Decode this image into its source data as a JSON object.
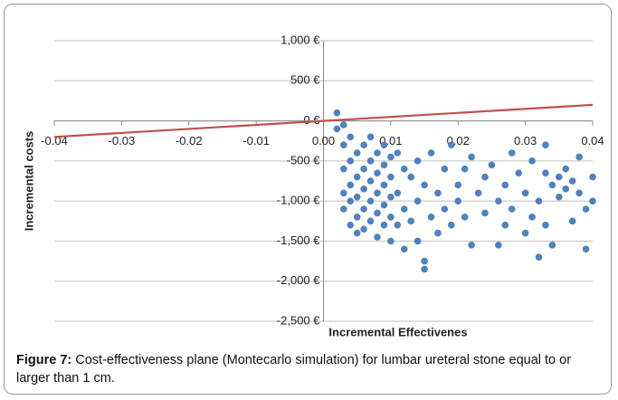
{
  "chart_data": {
    "type": "scatter",
    "x_label": "Incremental Effectivenes",
    "y_label": "Incremental costs",
    "caption_label": "Figure 7:",
    "caption": "Cost-effectiveness plane (Montecarlo simulation) for lumbar ureteral stone equal to or larger than 1 cm.",
    "color": "#4f81bd",
    "grid": true,
    "xlim": [
      -0.04,
      0.04
    ],
    "ylim": [
      -2500,
      1000
    ],
    "xticks": [
      -0.04,
      -0.03,
      -0.02,
      -0.01,
      {
        "value": 0,
        "label": "0.00"
      },
      0.01,
      0.02,
      0.03,
      0.04
    ],
    "yticks": [
      {
        "value": 1000,
        "label": "1,000 €"
      },
      {
        "value": 500,
        "label": "500 €"
      },
      {
        "value": 0,
        "label": "0 €"
      },
      {
        "value": -500,
        "label": "-500 €"
      },
      {
        "value": -1000,
        "label": "-1,000 €"
      },
      {
        "value": -1500,
        "label": "-1,500 €"
      },
      {
        "value": -2000,
        "label": "-2,000 €"
      },
      {
        "value": -2500,
        "label": "-2,500 €"
      }
    ],
    "x": [
      0.002,
      0.002,
      0.003,
      0.003,
      0.003,
      0.003,
      0.003,
      0.004,
      0.004,
      0.004,
      0.004,
      0.004,
      0.005,
      0.005,
      0.005,
      0.005,
      0.005,
      0.006,
      0.006,
      0.006,
      0.006,
      0.006,
      0.007,
      0.007,
      0.007,
      0.007,
      0.007,
      0.008,
      0.008,
      0.008,
      0.008,
      0.008,
      0.009,
      0.009,
      0.009,
      0.009,
      0.009,
      0.01,
      0.01,
      0.01,
      0.01,
      0.01,
      0.011,
      0.011,
      0.011,
      0.012,
      0.012,
      0.012,
      0.013,
      0.013,
      0.014,
      0.014,
      0.014,
      0.015,
      0.015,
      0.015,
      0.016,
      0.016,
      0.017,
      0.017,
      0.018,
      0.018,
      0.019,
      0.019,
      0.02,
      0.02,
      0.021,
      0.021,
      0.022,
      0.022,
      0.023,
      0.024,
      0.024,
      0.025,
      0.026,
      0.026,
      0.027,
      0.027,
      0.028,
      0.028,
      0.029,
      0.03,
      0.03,
      0.031,
      0.031,
      0.032,
      0.032,
      0.033,
      0.033,
      0.033,
      0.034,
      0.034,
      0.035,
      0.035,
      0.036,
      0.036,
      0.037,
      0.037,
      0.038,
      0.038,
      0.039,
      0.039,
      0.04,
      0.04
    ],
    "values": [
      100,
      -100,
      -50,
      -300,
      -600,
      -900,
      -1100,
      -200,
      -500,
      -800,
      -1000,
      -1300,
      -400,
      -700,
      -950,
      -1200,
      -1400,
      -300,
      -600,
      -850,
      -1100,
      -1350,
      -200,
      -500,
      -750,
      -1000,
      -1250,
      -400,
      -650,
      -900,
      -1150,
      -1450,
      -300,
      -550,
      -800,
      -1050,
      -1300,
      -450,
      -700,
      -950,
      -1200,
      -1500,
      -400,
      -900,
      -1300,
      -600,
      -1100,
      -1600,
      -700,
      -1250,
      -500,
      -1000,
      -1500,
      -1750,
      -1850,
      -800,
      -1200,
      -400,
      -900,
      -1400,
      -600,
      -1100,
      -300,
      -1300,
      -800,
      -1000,
      -600,
      -1200,
      -450,
      -1550,
      -900,
      -700,
      -1150,
      -550,
      -1000,
      -1550,
      -800,
      -1300,
      -400,
      -1100,
      -650,
      -900,
      -1400,
      -500,
      -1200,
      -1000,
      -1700,
      -300,
      -1300,
      -650,
      -800,
      -1550,
      -700,
      -950,
      -600,
      -850,
      -1250,
      -750,
      -900,
      -450,
      -1100,
      -1600,
      -700,
      -1000
    ],
    "threshold": {
      "x": [
        -0.04,
        0.04
      ],
      "values": [
        -200,
        200
      ],
      "color": "#c0504d"
    }
  }
}
